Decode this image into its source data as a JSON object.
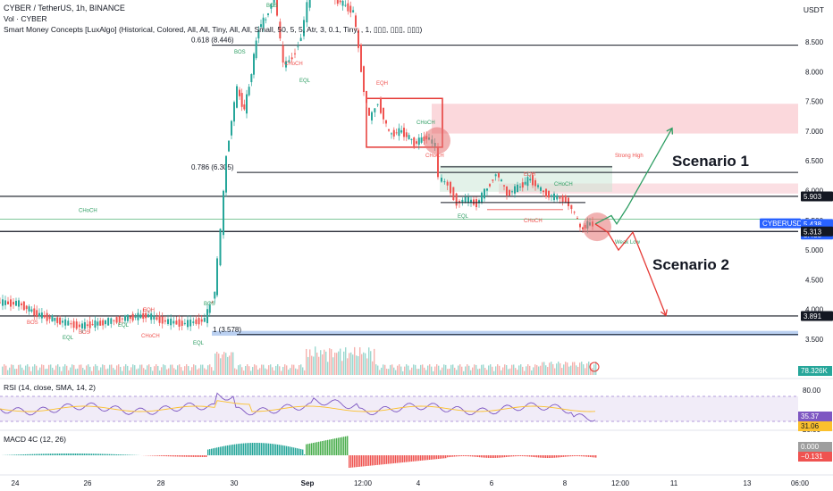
{
  "header": {
    "symbol_line": "CYBER / TetherUS, 1h, BINANCE",
    "volume_line": "Vol · CYBER",
    "indicator_line": "Smart Money Concepts [LuxAlgo] (Historical, Colored, All, All, Tiny, All, All, Small, 50, 5, 5, Atr, 3, 0.1, Tiny, , 1, ▯▯▯, ▯▯▯, ▯▯▯)"
  },
  "currency": "USDT",
  "panes": {
    "rsi_label": "RSI (14, close, SMA, 14, 2)",
    "macd_label": "MACD 4C (12, 26)"
  },
  "chart_data": {
    "type": "candlestick",
    "symbol": "CYBERUSDT",
    "interval": "1h",
    "y_ticks": [
      3.5,
      4.0,
      4.5,
      5.0,
      5.5,
      6.0,
      6.5,
      7.0,
      7.5,
      8.0,
      8.5
    ],
    "x_ticks": [
      "24",
      "26",
      "28",
      "30",
      "Sep",
      "12:00",
      "4",
      "6",
      "8",
      "12:00",
      "11",
      "13",
      "06:00"
    ],
    "price_path": [
      [
        0,
        4.12
      ],
      [
        24,
        4.1
      ],
      [
        44,
        3.92
      ],
      [
        70,
        3.8
      ],
      [
        92,
        3.72
      ],
      [
        118,
        3.78
      ],
      [
        140,
        3.85
      ],
      [
        166,
        3.9
      ],
      [
        188,
        3.8
      ],
      [
        210,
        3.76
      ],
      [
        232,
        3.83
      ],
      [
        243,
        4.3
      ],
      [
        250,
        5.3
      ],
      [
        256,
        6.6
      ],
      [
        262,
        7.2
      ],
      [
        268,
        7.7
      ],
      [
        276,
        7.35
      ],
      [
        284,
        8.0
      ],
      [
        292,
        8.75
      ],
      [
        300,
        8.9
      ],
      [
        310,
        9.3
      ],
      [
        320,
        8.1
      ],
      [
        330,
        8.25
      ],
      [
        340,
        8.6
      ],
      [
        350,
        9.4
      ],
      [
        372,
        9.3
      ],
      [
        398,
        9.0
      ],
      [
        404,
        8.4
      ],
      [
        410,
        7.7
      ],
      [
        416,
        7.2
      ],
      [
        426,
        7.5
      ],
      [
        438,
        6.95
      ],
      [
        452,
        7.0
      ],
      [
        466,
        6.8
      ],
      [
        480,
        6.9
      ],
      [
        490,
        6.75
      ],
      [
        494,
        6.2
      ],
      [
        504,
        6.1
      ],
      [
        514,
        5.8
      ],
      [
        524,
        5.85
      ],
      [
        536,
        5.78
      ],
      [
        548,
        6.05
      ],
      [
        558,
        6.3
      ],
      [
        570,
        5.95
      ],
      [
        582,
        6.05
      ],
      [
        596,
        6.2
      ],
      [
        608,
        6.0
      ],
      [
        620,
        5.9
      ],
      [
        636,
        5.85
      ],
      [
        646,
        5.6
      ],
      [
        652,
        5.35
      ],
      [
        660,
        5.44
      ],
      [
        666,
        5.438
      ]
    ],
    "levels": [
      {
        "label": "0.618 (8.446)",
        "price": 8.446
      },
      {
        "label": "0.786 (6.305)",
        "price": 6.305
      },
      {
        "label": "1 (3.578)",
        "price": 3.578
      }
    ],
    "price_tags": [
      {
        "text": "5.903",
        "price": 5.903,
        "color": "#131722"
      },
      {
        "text": "CYBERUSDT",
        "price": 5.45,
        "color": "#2962ff"
      },
      {
        "text": "5.438",
        "price": 5.438,
        "color": "#2962ff"
      },
      {
        "text": "01:25",
        "price": 5.34,
        "color": "#2962ff"
      },
      {
        "text": "5.438",
        "price": 5.26,
        "color": "#2962ff"
      },
      {
        "text": "5.313",
        "price": 5.313,
        "color": "#131722"
      },
      {
        "text": "3.891",
        "price": 3.891,
        "color": "#131722"
      }
    ],
    "scenarios": [
      {
        "label": "Scenario 1",
        "path": [
          [
            666,
            5.438
          ],
          [
            684,
            5.58
          ],
          [
            690,
            5.44
          ],
          [
            702,
            5.72
          ],
          [
            752,
            7.05
          ]
        ],
        "color": "#2e9e63"
      },
      {
        "label": "Scenario 2",
        "path": [
          [
            666,
            5.438
          ],
          [
            680,
            5.3
          ],
          [
            692,
            5.0
          ],
          [
            708,
            5.3
          ],
          [
            745,
            3.9
          ]
        ],
        "color": "#e53935"
      }
    ],
    "smc_labels": [
      "BOS",
      "CHoCH",
      "EQH",
      "EQL",
      "Strong High",
      "Weak Low"
    ],
    "volume": {
      "last": "78.326K"
    },
    "rsi": {
      "ticks": [
        80.0,
        20.0
      ],
      "value": "35.37",
      "ma": "31.06"
    },
    "macd": {
      "value": "0.000",
      "signal": "−0.131"
    }
  }
}
